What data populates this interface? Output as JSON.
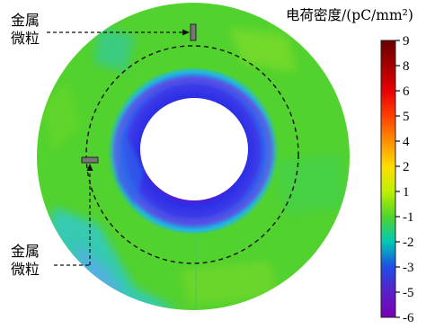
{
  "chart_data": {
    "type": "heatmap",
    "title": "",
    "colorbar": {
      "title": "电荷密度/(pC/mm²)",
      "ticks": [
        "9",
        "8",
        "6",
        "5",
        "4",
        "2",
        "1",
        "-1",
        "-2",
        "-3",
        "-5",
        "-6"
      ],
      "stops": [
        "#6a0000",
        "#a40000",
        "#e80000",
        "#ff4000",
        "#ff9000",
        "#ffdc00",
        "#bef000",
        "#4fd42b",
        "#00c9b4",
        "#1d4ee6",
        "#5a1fc8",
        "#7a00b4"
      ]
    },
    "field": {
      "background_value_color": "#52d22e",
      "inner_band_color": "#2a36e0",
      "inner_hole": "white"
    },
    "annotations": [
      {
        "text": "金属\n微粒",
        "target": "upper particle"
      },
      {
        "text": "金属\n微粒",
        "target": "left particle"
      }
    ]
  }
}
